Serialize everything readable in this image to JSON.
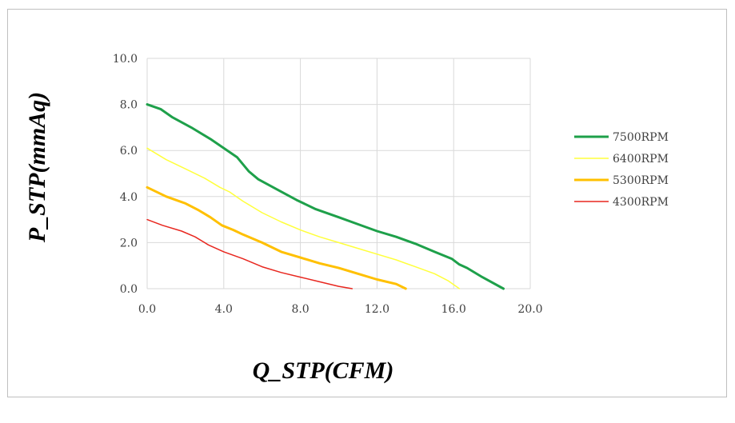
{
  "chart_data": {
    "type": "line",
    "xlabel": "Q_STP(CFM)",
    "ylabel": "P_STP(mmAq)",
    "xlim": [
      0,
      20
    ],
    "ylim": [
      0,
      10
    ],
    "x_ticks": [
      "0.0",
      "4.0",
      "8.0",
      "12.0",
      "16.0",
      "20.0"
    ],
    "y_ticks": [
      "0.0",
      "2.0",
      "4.0",
      "6.0",
      "8.0",
      "10.0"
    ],
    "grid": true,
    "legend_position": "right",
    "series": [
      {
        "name": "7500RPM",
        "color": "#1ea04a",
        "width": 3,
        "points": [
          [
            0,
            8.0
          ],
          [
            0.7,
            7.8
          ],
          [
            1.3,
            7.45
          ],
          [
            2.3,
            7.0
          ],
          [
            3.3,
            6.5
          ],
          [
            4.0,
            6.1
          ],
          [
            4.7,
            5.7
          ],
          [
            5.3,
            5.1
          ],
          [
            5.8,
            4.75
          ],
          [
            6.8,
            4.3
          ],
          [
            7.8,
            3.85
          ],
          [
            8.8,
            3.45
          ],
          [
            10.0,
            3.1
          ],
          [
            11.0,
            2.8
          ],
          [
            12.0,
            2.5
          ],
          [
            13.0,
            2.25
          ],
          [
            14.0,
            1.95
          ],
          [
            15.0,
            1.6
          ],
          [
            15.9,
            1.3
          ],
          [
            16.3,
            1.05
          ],
          [
            16.7,
            0.9
          ],
          [
            17.5,
            0.5
          ],
          [
            18.6,
            0.0
          ]
        ]
      },
      {
        "name": "6400RPM",
        "color": "#ffff3c",
        "width": 1.5,
        "points": [
          [
            0,
            6.1
          ],
          [
            1.0,
            5.6
          ],
          [
            2.0,
            5.2
          ],
          [
            3.0,
            4.8
          ],
          [
            3.8,
            4.4
          ],
          [
            4.3,
            4.2
          ],
          [
            5.0,
            3.8
          ],
          [
            6.0,
            3.3
          ],
          [
            7.0,
            2.9
          ],
          [
            8.0,
            2.55
          ],
          [
            9.0,
            2.25
          ],
          [
            10.0,
            2.0
          ],
          [
            11.0,
            1.75
          ],
          [
            12.0,
            1.5
          ],
          [
            13.0,
            1.25
          ],
          [
            14.0,
            0.95
          ],
          [
            15.0,
            0.65
          ],
          [
            15.7,
            0.35
          ],
          [
            16.3,
            0.0
          ]
        ]
      },
      {
        "name": "5300RPM",
        "color": "#ffc000",
        "width": 3,
        "points": [
          [
            0,
            4.4
          ],
          [
            1.0,
            4.0
          ],
          [
            2.0,
            3.7
          ],
          [
            2.7,
            3.4
          ],
          [
            3.3,
            3.1
          ],
          [
            3.9,
            2.75
          ],
          [
            4.5,
            2.55
          ],
          [
            5.0,
            2.35
          ],
          [
            6.0,
            2.0
          ],
          [
            7.0,
            1.6
          ],
          [
            8.0,
            1.35
          ],
          [
            9.0,
            1.1
          ],
          [
            10.0,
            0.9
          ],
          [
            11.0,
            0.65
          ],
          [
            12.0,
            0.4
          ],
          [
            13.0,
            0.2
          ],
          [
            13.5,
            0.0
          ]
        ]
      },
      {
        "name": "4300RPM",
        "color": "#e8271f",
        "width": 1.5,
        "points": [
          [
            0,
            3.0
          ],
          [
            0.8,
            2.75
          ],
          [
            1.8,
            2.5
          ],
          [
            2.5,
            2.25
          ],
          [
            3.2,
            1.9
          ],
          [
            4.0,
            1.6
          ],
          [
            5.0,
            1.3
          ],
          [
            6.0,
            0.95
          ],
          [
            7.0,
            0.7
          ],
          [
            8.0,
            0.5
          ],
          [
            9.0,
            0.3
          ],
          [
            10.0,
            0.1
          ],
          [
            10.7,
            0.0
          ]
        ]
      }
    ]
  }
}
